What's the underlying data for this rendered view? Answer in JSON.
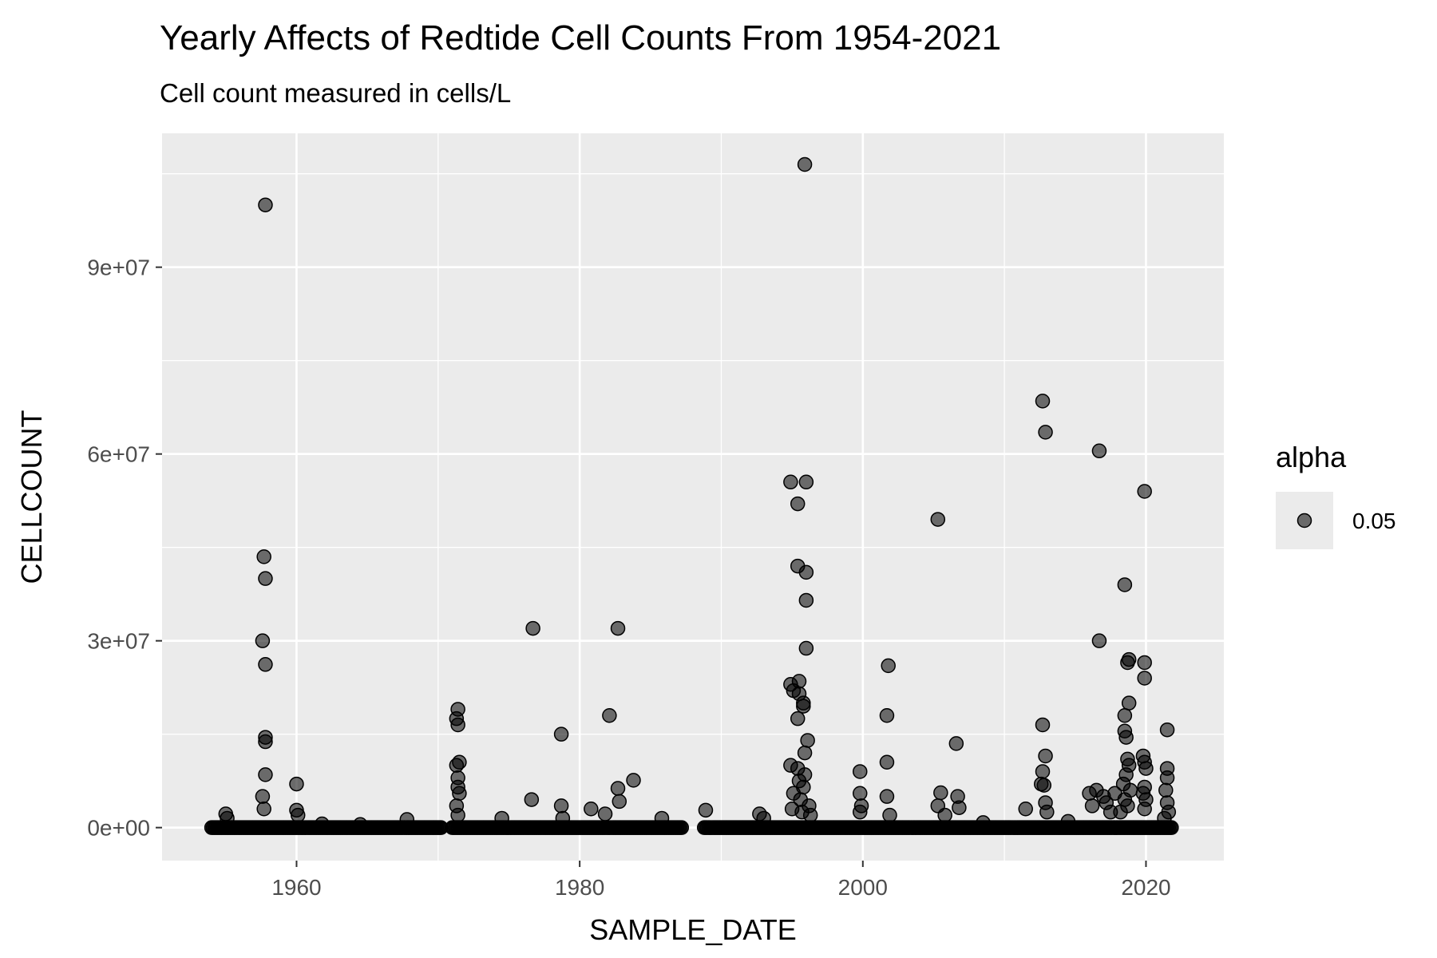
{
  "chart_data": {
    "type": "scatter",
    "title": "Yearly Affects of Redtide Cell Counts From 1954-2021",
    "subtitle": "Cell count measured in cells/L",
    "xlabel": "SAMPLE_DATE",
    "ylabel": "CELLCOUNT",
    "xlim": [
      1950.5,
      2025.5
    ],
    "ylim": [
      -5300000,
      111500000
    ],
    "x_ticks": [
      1960,
      1980,
      2000,
      2020
    ],
    "x_tick_labels": [
      "1960",
      "1980",
      "2000",
      "2020"
    ],
    "y_ticks": [
      0,
      30000000,
      60000000,
      90000000
    ],
    "y_tick_labels": [
      "0e+00",
      "3e+07",
      "6e+07",
      "9e+07"
    ],
    "grid": true,
    "legend": {
      "title": "alpha",
      "label": "0.05",
      "position": "right"
    },
    "point_color": "#000000",
    "point_alpha": 0.55,
    "panel_color": "#ebebeb",
    "baseline_ranges": [
      [
        1954.0,
        1970.2
      ],
      [
        1971.0,
        1987.2
      ],
      [
        1988.8,
        2021.8
      ]
    ],
    "points": [
      [
        1957.8,
        100000000
      ],
      [
        1957.7,
        43500000
      ],
      [
        1957.8,
        40000000
      ],
      [
        1957.6,
        30000000
      ],
      [
        1957.8,
        26200000
      ],
      [
        1957.8,
        14500000
      ],
      [
        1957.8,
        13800000
      ],
      [
        1957.8,
        8500000
      ],
      [
        1957.6,
        5000000
      ],
      [
        1957.7,
        3000000
      ],
      [
        1955.0,
        2200000
      ],
      [
        1955.1,
        1500000
      ],
      [
        1960.0,
        7000000
      ],
      [
        1960.0,
        2800000
      ],
      [
        1960.1,
        2000000
      ],
      [
        1961.8,
        600000
      ],
      [
        1967.8,
        1300000
      ],
      [
        1964.5,
        500000
      ],
      [
        1971.4,
        19000000
      ],
      [
        1971.3,
        17500000
      ],
      [
        1971.4,
        16500000
      ],
      [
        1971.5,
        10500000
      ],
      [
        1971.3,
        10000000
      ],
      [
        1971.4,
        8000000
      ],
      [
        1971.4,
        6500000
      ],
      [
        1971.5,
        5500000
      ],
      [
        1971.3,
        3500000
      ],
      [
        1971.4,
        2000000
      ],
      [
        1974.5,
        1500000
      ],
      [
        1976.7,
        32000000
      ],
      [
        1976.6,
        4500000
      ],
      [
        1978.7,
        15000000
      ],
      [
        1978.7,
        3500000
      ],
      [
        1978.8,
        1500000
      ],
      [
        1980.8,
        3000000
      ],
      [
        1981.8,
        2200000
      ],
      [
        1982.1,
        18000000
      ],
      [
        1982.7,
        32000000
      ],
      [
        1982.7,
        6300000
      ],
      [
        1982.8,
        4200000
      ],
      [
        1983.8,
        7600000
      ],
      [
        1985.8,
        1500000
      ],
      [
        1988.9,
        2800000
      ],
      [
        1992.7,
        2200000
      ],
      [
        1993.0,
        1500000
      ],
      [
        1995.9,
        106500000
      ],
      [
        1994.9,
        55500000
      ],
      [
        1996.0,
        55500000
      ],
      [
        1995.4,
        52000000
      ],
      [
        1995.4,
        42000000
      ],
      [
        1996.0,
        41000000
      ],
      [
        1996.0,
        36500000
      ],
      [
        1996.0,
        28800000
      ],
      [
        1994.9,
        23000000
      ],
      [
        1995.1,
        22000000
      ],
      [
        1995.5,
        23500000
      ],
      [
        1995.5,
        21500000
      ],
      [
        1995.8,
        20000000
      ],
      [
        1995.8,
        19500000
      ],
      [
        1995.4,
        17500000
      ],
      [
        1996.1,
        14000000
      ],
      [
        1995.9,
        12000000
      ],
      [
        1994.9,
        10000000
      ],
      [
        1995.4,
        9500000
      ],
      [
        1995.9,
        8500000
      ],
      [
        1995.5,
        7500000
      ],
      [
        1995.8,
        6500000
      ],
      [
        1995.1,
        5500000
      ],
      [
        1995.6,
        4500000
      ],
      [
        1996.2,
        3500000
      ],
      [
        1995.0,
        3000000
      ],
      [
        1995.7,
        2500000
      ],
      [
        1996.3,
        2000000
      ],
      [
        1999.8,
        9000000
      ],
      [
        1999.8,
        5500000
      ],
      [
        1999.9,
        3500000
      ],
      [
        1999.8,
        2500000
      ],
      [
        2001.8,
        26000000
      ],
      [
        2001.7,
        18000000
      ],
      [
        2001.7,
        10500000
      ],
      [
        2001.7,
        5000000
      ],
      [
        2001.9,
        2000000
      ],
      [
        2005.3,
        49500000
      ],
      [
        2005.5,
        5600000
      ],
      [
        2005.3,
        3500000
      ],
      [
        2005.8,
        2000000
      ],
      [
        2006.6,
        13500000
      ],
      [
        2006.7,
        5000000
      ],
      [
        2006.8,
        3200000
      ],
      [
        2008.5,
        800000
      ],
      [
        2011.5,
        3000000
      ],
      [
        2012.7,
        68500000
      ],
      [
        2012.9,
        63500000
      ],
      [
        2012.7,
        16500000
      ],
      [
        2012.9,
        11500000
      ],
      [
        2012.7,
        9000000
      ],
      [
        2012.6,
        7000000
      ],
      [
        2012.8,
        6800000
      ],
      [
        2012.9,
        4000000
      ],
      [
        2013.0,
        2500000
      ],
      [
        2014.5,
        1000000
      ],
      [
        2016.7,
        60500000
      ],
      [
        2016.7,
        30000000
      ],
      [
        2016.0,
        5500000
      ],
      [
        2016.5,
        6000000
      ],
      [
        2016.2,
        3500000
      ],
      [
        2017.0,
        5000000
      ],
      [
        2017.5,
        2500000
      ],
      [
        2018.5,
        39000000
      ],
      [
        2018.8,
        27000000
      ],
      [
        2018.7,
        26500000
      ],
      [
        2018.8,
        20000000
      ],
      [
        2018.5,
        18000000
      ],
      [
        2018.5,
        15500000
      ],
      [
        2018.6,
        14500000
      ],
      [
        2018.7,
        11000000
      ],
      [
        2018.8,
        10000000
      ],
      [
        2018.6,
        8500000
      ],
      [
        2018.4,
        7000000
      ],
      [
        2018.9,
        6000000
      ],
      [
        2018.5,
        4500000
      ],
      [
        2018.7,
        3500000
      ],
      [
        2018.2,
        2500000
      ],
      [
        2017.8,
        5500000
      ],
      [
        2017.2,
        4000000
      ],
      [
        2019.9,
        54000000
      ],
      [
        2019.9,
        26500000
      ],
      [
        2019.9,
        24000000
      ],
      [
        2019.8,
        11500000
      ],
      [
        2019.9,
        10500000
      ],
      [
        2020.0,
        9500000
      ],
      [
        2019.9,
        6500000
      ],
      [
        2019.8,
        5500000
      ],
      [
        2020.0,
        4500000
      ],
      [
        2019.9,
        3000000
      ],
      [
        2021.5,
        15700000
      ],
      [
        2021.5,
        9500000
      ],
      [
        2021.5,
        8000000
      ],
      [
        2021.4,
        6000000
      ],
      [
        2021.5,
        4000000
      ],
      [
        2021.6,
        2500000
      ],
      [
        2021.3,
        1500000
      ]
    ]
  }
}
